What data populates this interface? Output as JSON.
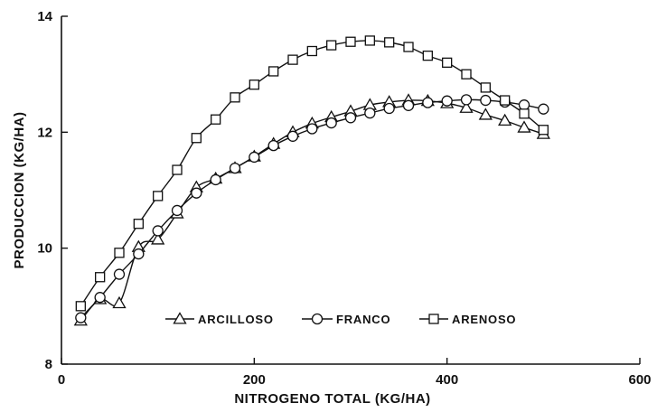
{
  "chart_data": {
    "type": "line",
    "xlabel": "NITROGENO TOTAL (KG/HA)",
    "ylabel": "PRODUCCION (KG/HA)",
    "xlim": [
      0,
      600
    ],
    "ylim": [
      8,
      14
    ],
    "xticks": [
      0,
      200,
      400,
      600
    ],
    "yticks": [
      8,
      10,
      12,
      14
    ],
    "legend_position": "bottom-center",
    "grid": false,
    "series": [
      {
        "name": "ARCILLOSO",
        "marker": "triangle",
        "points": [
          [
            20,
            8.75
          ],
          [
            40,
            9.12
          ],
          [
            60,
            9.05
          ],
          [
            80,
            10.02
          ],
          [
            100,
            10.15
          ],
          [
            120,
            10.6
          ],
          [
            140,
            11.05
          ],
          [
            160,
            11.2
          ],
          [
            180,
            11.38
          ],
          [
            200,
            11.58
          ],
          [
            220,
            11.8
          ],
          [
            240,
            12.0
          ],
          [
            260,
            12.15
          ],
          [
            280,
            12.26
          ],
          [
            300,
            12.36
          ],
          [
            320,
            12.47
          ],
          [
            340,
            12.52
          ],
          [
            360,
            12.55
          ],
          [
            380,
            12.54
          ],
          [
            400,
            12.5
          ],
          [
            420,
            12.42
          ],
          [
            440,
            12.3
          ],
          [
            460,
            12.2
          ],
          [
            480,
            12.08
          ],
          [
            500,
            11.97
          ]
        ]
      },
      {
        "name": "FRANCO",
        "marker": "circle",
        "points": [
          [
            20,
            8.8
          ],
          [
            40,
            9.15
          ],
          [
            60,
            9.55
          ],
          [
            80,
            9.9
          ],
          [
            100,
            10.3
          ],
          [
            120,
            10.65
          ],
          [
            140,
            10.95
          ],
          [
            160,
            11.18
          ],
          [
            180,
            11.38
          ],
          [
            200,
            11.57
          ],
          [
            220,
            11.77
          ],
          [
            240,
            11.93
          ],
          [
            260,
            12.06
          ],
          [
            280,
            12.16
          ],
          [
            300,
            12.25
          ],
          [
            320,
            12.33
          ],
          [
            340,
            12.41
          ],
          [
            360,
            12.46
          ],
          [
            380,
            12.51
          ],
          [
            400,
            12.54
          ],
          [
            420,
            12.56
          ],
          [
            440,
            12.55
          ],
          [
            460,
            12.52
          ],
          [
            480,
            12.47
          ],
          [
            500,
            12.4
          ]
        ]
      },
      {
        "name": "ARENOSO",
        "marker": "square",
        "points": [
          [
            20,
            9.0
          ],
          [
            40,
            9.5
          ],
          [
            60,
            9.92
          ],
          [
            80,
            10.42
          ],
          [
            100,
            10.9
          ],
          [
            120,
            11.35
          ],
          [
            140,
            11.9
          ],
          [
            160,
            12.22
          ],
          [
            180,
            12.6
          ],
          [
            200,
            12.82
          ],
          [
            220,
            13.05
          ],
          [
            240,
            13.25
          ],
          [
            260,
            13.4
          ],
          [
            280,
            13.5
          ],
          [
            300,
            13.56
          ],
          [
            320,
            13.58
          ],
          [
            340,
            13.55
          ],
          [
            360,
            13.47
          ],
          [
            380,
            13.32
          ],
          [
            400,
            13.2
          ],
          [
            420,
            13.0
          ],
          [
            440,
            12.77
          ],
          [
            460,
            12.55
          ],
          [
            480,
            12.32
          ],
          [
            500,
            12.04
          ]
        ]
      }
    ]
  }
}
